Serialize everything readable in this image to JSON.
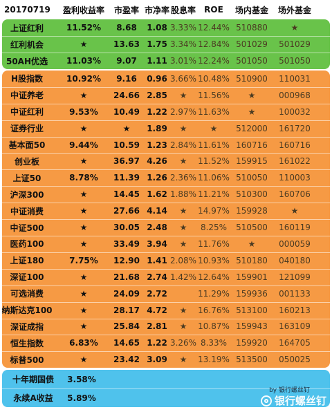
{
  "header": [
    "20170719",
    "盈利收益率",
    "市盈率",
    "市净率",
    "股息率",
    "ROE",
    "场内基金",
    "场外基金"
  ],
  "green_rows": [
    [
      "上证红利",
      "11.52%",
      "8.68",
      "1.08",
      "3.33%",
      "12.44%",
      "510880",
      "★"
    ],
    [
      "红利机会",
      "★",
      "13.63",
      "1.75",
      "3.34%",
      "12.84%",
      "501029",
      "501029"
    ],
    [
      "50AH优选",
      "11.03%",
      "9.07",
      "1.11",
      "3.01%",
      "12.24%",
      "501050",
      "501050"
    ]
  ],
  "orange_rows": [
    [
      "H股指数",
      "10.92%",
      "9.16",
      "0.96",
      "3.66%",
      "10.48%",
      "510900",
      "110031"
    ],
    [
      "中证养老",
      "★",
      "24.66",
      "2.85",
      "★",
      "11.56%",
      "★",
      "000968"
    ],
    [
      "中证红利",
      "9.53%",
      "10.49",
      "1.22",
      "2.97%",
      "11.63%",
      "★",
      "100032"
    ],
    [
      "证券行业",
      "★",
      "★",
      "1.89",
      "★",
      "★",
      "512000",
      "161720"
    ],
    [
      "基本面50",
      "9.44%",
      "10.59",
      "1.23",
      "2.84%",
      "11.61%",
      "160716",
      "160716"
    ],
    [
      "创业板",
      "★",
      "36.97",
      "4.26",
      "★",
      "11.52%",
      "159915",
      "161022"
    ],
    [
      "上证50",
      "8.78%",
      "11.39",
      "1.26",
      "2.36%",
      "11.06%",
      "510050",
      "110003"
    ],
    [
      "沪深300",
      "★",
      "14.45",
      "1.62",
      "1.88%",
      "11.21%",
      "510300",
      "160706"
    ],
    [
      "中证消费",
      "★",
      "27.66",
      "4.14",
      "★",
      "14.97%",
      "159928",
      "★"
    ],
    [
      "中证500",
      "★",
      "30.05",
      "2.48",
      "★",
      "8.25%",
      "510500",
      "160119"
    ],
    [
      "医药100",
      "★",
      "33.49",
      "3.94",
      "★",
      "11.76%",
      "★",
      "000059"
    ],
    [
      "上证180",
      "7.75%",
      "12.90",
      "1.41",
      "2.08%",
      "10.93%",
      "510180",
      "040180"
    ],
    [
      "深证100",
      "★",
      "21.68",
      "2.74",
      "1.42%",
      "12.64%",
      "159901",
      "121099"
    ],
    [
      "可选消费",
      "★",
      "24.09",
      "2.72",
      "",
      "11.29%",
      "159936",
      "001133"
    ],
    [
      "纳斯达克100",
      "★",
      "28.17",
      "4.72",
      "★",
      "16.76%",
      "513100",
      "160213"
    ],
    [
      "深证成指",
      "★",
      "25.84",
      "2.81",
      "★",
      "10.87%",
      "159943",
      "163109"
    ],
    [
      "恒生指数",
      "6.83%",
      "14.65",
      "1.22",
      "3.26%",
      "8.33%",
      "159920",
      "164705"
    ],
    [
      "标普500",
      "★",
      "23.42",
      "3.09",
      "★",
      "13.19%",
      "513500",
      "050025"
    ]
  ],
  "blue_rows": [
    [
      "十年期国债",
      "3.58%"
    ],
    [
      "永续A收益",
      "5.89%"
    ]
  ],
  "byline": "by 银行螺丝钉",
  "watermark": "银行螺丝钉",
  "colors": {
    "green": "#69c34a",
    "orange": "#f69a44",
    "blue": "#4fc2ec"
  }
}
